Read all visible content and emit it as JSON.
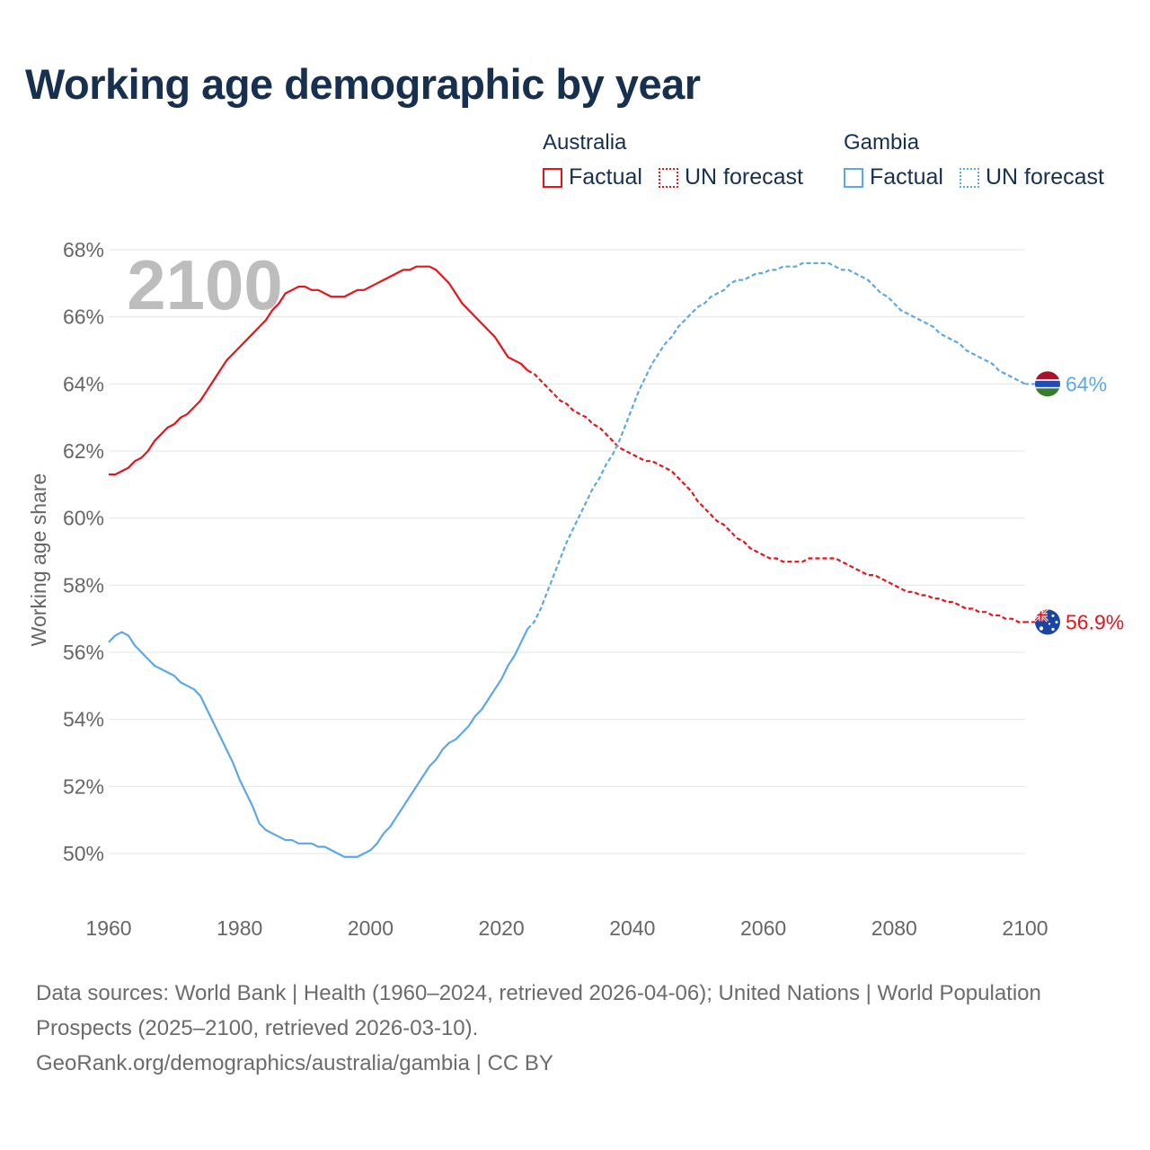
{
  "title": "Working age demographic by year",
  "legend": {
    "australia": {
      "name": "Australia",
      "factual": "Factual",
      "forecast": "UN forecast"
    },
    "gambia": {
      "name": "Gambia",
      "factual": "Factual",
      "forecast": "UN forecast"
    }
  },
  "colors": {
    "australia": "#e8131b",
    "gambia": "#5ca8e6",
    "title": "#18304f",
    "grid": "#e6e6e6",
    "axis_text": "#666666",
    "year_watermark": "#bdbdbd"
  },
  "footer": {
    "sources": "Data sources: World Bank | Health (1960–2024, retrieved 2026-04-06); United Nations | World Population Prospects (2025–2100, retrieved 2026-03-10).",
    "credit": "GeoRank.org/demographics/australia/gambia | CC BY"
  },
  "chart_data": {
    "type": "line",
    "year_label": "2100",
    "ylabel": "Working age share",
    "xlim": [
      1960,
      2100
    ],
    "ylim": [
      49.0,
      68.0
    ],
    "x_ticks": [
      1960,
      1980,
      2000,
      2020,
      2040,
      2060,
      2080,
      2100
    ],
    "y_ticks": [
      50,
      52,
      54,
      56,
      58,
      60,
      62,
      64,
      66,
      68
    ],
    "y_tick_labels": [
      "50%",
      "52%",
      "54%",
      "56%",
      "58%",
      "60%",
      "62%",
      "64%",
      "66%",
      "68%"
    ],
    "factual_range": "1960–2024",
    "forecast_range": "2025–2100",
    "series": [
      {
        "name": "Australia",
        "color": "#e8131b",
        "end_label": "56.9%",
        "flag": "australia-flag",
        "points": [
          [
            1960,
            61.3
          ],
          [
            1961,
            61.3
          ],
          [
            1962,
            61.4
          ],
          [
            1963,
            61.5
          ],
          [
            1964,
            61.7
          ],
          [
            1965,
            61.8
          ],
          [
            1966,
            62.0
          ],
          [
            1967,
            62.3
          ],
          [
            1968,
            62.5
          ],
          [
            1969,
            62.7
          ],
          [
            1970,
            62.8
          ],
          [
            1971,
            63.0
          ],
          [
            1972,
            63.1
          ],
          [
            1973,
            63.3
          ],
          [
            1974,
            63.5
          ],
          [
            1975,
            63.8
          ],
          [
            1976,
            64.1
          ],
          [
            1977,
            64.4
          ],
          [
            1978,
            64.7
          ],
          [
            1979,
            64.9
          ],
          [
            1980,
            65.1
          ],
          [
            1981,
            65.3
          ],
          [
            1982,
            65.5
          ],
          [
            1983,
            65.7
          ],
          [
            1984,
            65.9
          ],
          [
            1985,
            66.2
          ],
          [
            1986,
            66.4
          ],
          [
            1987,
            66.7
          ],
          [
            1988,
            66.8
          ],
          [
            1989,
            66.9
          ],
          [
            1990,
            66.9
          ],
          [
            1991,
            66.8
          ],
          [
            1992,
            66.8
          ],
          [
            1993,
            66.7
          ],
          [
            1994,
            66.6
          ],
          [
            1995,
            66.6
          ],
          [
            1996,
            66.6
          ],
          [
            1997,
            66.7
          ],
          [
            1998,
            66.8
          ],
          [
            1999,
            66.8
          ],
          [
            2000,
            66.9
          ],
          [
            2001,
            67.0
          ],
          [
            2002,
            67.1
          ],
          [
            2003,
            67.2
          ],
          [
            2004,
            67.3
          ],
          [
            2005,
            67.4
          ],
          [
            2006,
            67.4
          ],
          [
            2007,
            67.5
          ],
          [
            2008,
            67.5
          ],
          [
            2009,
            67.5
          ],
          [
            2010,
            67.4
          ],
          [
            2011,
            67.2
          ],
          [
            2012,
            67.0
          ],
          [
            2013,
            66.7
          ],
          [
            2014,
            66.4
          ],
          [
            2015,
            66.2
          ],
          [
            2016,
            66.0
          ],
          [
            2017,
            65.8
          ],
          [
            2018,
            65.6
          ],
          [
            2019,
            65.4
          ],
          [
            2020,
            65.1
          ],
          [
            2021,
            64.8
          ],
          [
            2022,
            64.7
          ],
          [
            2023,
            64.6
          ],
          [
            2024,
            64.4
          ],
          [
            2025,
            64.3
          ],
          [
            2026,
            64.1
          ],
          [
            2027,
            63.9
          ],
          [
            2028,
            63.7
          ],
          [
            2029,
            63.5
          ],
          [
            2030,
            63.4
          ],
          [
            2031,
            63.2
          ],
          [
            2032,
            63.1
          ],
          [
            2033,
            63.0
          ],
          [
            2034,
            62.8
          ],
          [
            2035,
            62.7
          ],
          [
            2036,
            62.5
          ],
          [
            2037,
            62.3
          ],
          [
            2038,
            62.1
          ],
          [
            2039,
            62.0
          ],
          [
            2040,
            61.9
          ],
          [
            2041,
            61.8
          ],
          [
            2042,
            61.7
          ],
          [
            2043,
            61.7
          ],
          [
            2044,
            61.6
          ],
          [
            2045,
            61.5
          ],
          [
            2046,
            61.4
          ],
          [
            2047,
            61.2
          ],
          [
            2048,
            61.0
          ],
          [
            2049,
            60.8
          ],
          [
            2050,
            60.5
          ],
          [
            2051,
            60.3
          ],
          [
            2052,
            60.1
          ],
          [
            2053,
            59.9
          ],
          [
            2054,
            59.8
          ],
          [
            2055,
            59.6
          ],
          [
            2056,
            59.4
          ],
          [
            2057,
            59.3
          ],
          [
            2058,
            59.1
          ],
          [
            2059,
            59.0
          ],
          [
            2060,
            58.9
          ],
          [
            2061,
            58.8
          ],
          [
            2062,
            58.8
          ],
          [
            2063,
            58.7
          ],
          [
            2064,
            58.7
          ],
          [
            2065,
            58.7
          ],
          [
            2066,
            58.7
          ],
          [
            2067,
            58.8
          ],
          [
            2068,
            58.8
          ],
          [
            2069,
            58.8
          ],
          [
            2070,
            58.8
          ],
          [
            2071,
            58.8
          ],
          [
            2072,
            58.7
          ],
          [
            2073,
            58.6
          ],
          [
            2074,
            58.5
          ],
          [
            2075,
            58.4
          ],
          [
            2076,
            58.3
          ],
          [
            2077,
            58.3
          ],
          [
            2078,
            58.2
          ],
          [
            2079,
            58.1
          ],
          [
            2080,
            58.0
          ],
          [
            2081,
            57.9
          ],
          [
            2082,
            57.8
          ],
          [
            2083,
            57.8
          ],
          [
            2084,
            57.7
          ],
          [
            2085,
            57.7
          ],
          [
            2086,
            57.6
          ],
          [
            2087,
            57.6
          ],
          [
            2088,
            57.5
          ],
          [
            2089,
            57.5
          ],
          [
            2090,
            57.4
          ],
          [
            2091,
            57.3
          ],
          [
            2092,
            57.3
          ],
          [
            2093,
            57.2
          ],
          [
            2094,
            57.2
          ],
          [
            2095,
            57.1
          ],
          [
            2096,
            57.1
          ],
          [
            2097,
            57.0
          ],
          [
            2098,
            57.0
          ],
          [
            2099,
            56.9
          ],
          [
            2100,
            56.9
          ]
        ]
      },
      {
        "name": "Gambia",
        "color": "#5ca8e6",
        "end_label": "64%",
        "flag": "gambia-flag",
        "points": [
          [
            1960,
            56.3
          ],
          [
            1961,
            56.5
          ],
          [
            1962,
            56.6
          ],
          [
            1963,
            56.5
          ],
          [
            1964,
            56.2
          ],
          [
            1965,
            56.0
          ],
          [
            1966,
            55.8
          ],
          [
            1967,
            55.6
          ],
          [
            1968,
            55.5
          ],
          [
            1969,
            55.4
          ],
          [
            1970,
            55.3
          ],
          [
            1971,
            55.1
          ],
          [
            1972,
            55.0
          ],
          [
            1973,
            54.9
          ],
          [
            1974,
            54.7
          ],
          [
            1975,
            54.3
          ],
          [
            1976,
            53.9
          ],
          [
            1977,
            53.5
          ],
          [
            1978,
            53.1
          ],
          [
            1979,
            52.7
          ],
          [
            1980,
            52.2
          ],
          [
            1981,
            51.8
          ],
          [
            1982,
            51.4
          ],
          [
            1983,
            50.9
          ],
          [
            1984,
            50.7
          ],
          [
            1985,
            50.6
          ],
          [
            1986,
            50.5
          ],
          [
            1987,
            50.4
          ],
          [
            1988,
            50.4
          ],
          [
            1989,
            50.3
          ],
          [
            1990,
            50.3
          ],
          [
            1991,
            50.3
          ],
          [
            1992,
            50.2
          ],
          [
            1993,
            50.2
          ],
          [
            1994,
            50.1
          ],
          [
            1995,
            50.0
          ],
          [
            1996,
            49.9
          ],
          [
            1997,
            49.9
          ],
          [
            1998,
            49.9
          ],
          [
            1999,
            50.0
          ],
          [
            2000,
            50.1
          ],
          [
            2001,
            50.3
          ],
          [
            2002,
            50.6
          ],
          [
            2003,
            50.8
          ],
          [
            2004,
            51.1
          ],
          [
            2005,
            51.4
          ],
          [
            2006,
            51.7
          ],
          [
            2007,
            52.0
          ],
          [
            2008,
            52.3
          ],
          [
            2009,
            52.6
          ],
          [
            2010,
            52.8
          ],
          [
            2011,
            53.1
          ],
          [
            2012,
            53.3
          ],
          [
            2013,
            53.4
          ],
          [
            2014,
            53.6
          ],
          [
            2015,
            53.8
          ],
          [
            2016,
            54.1
          ],
          [
            2017,
            54.3
          ],
          [
            2018,
            54.6
          ],
          [
            2019,
            54.9
          ],
          [
            2020,
            55.2
          ],
          [
            2021,
            55.6
          ],
          [
            2022,
            55.9
          ],
          [
            2023,
            56.3
          ],
          [
            2024,
            56.7
          ],
          [
            2025,
            56.9
          ],
          [
            2026,
            57.3
          ],
          [
            2027,
            57.8
          ],
          [
            2028,
            58.3
          ],
          [
            2029,
            58.8
          ],
          [
            2030,
            59.3
          ],
          [
            2031,
            59.7
          ],
          [
            2032,
            60.1
          ],
          [
            2033,
            60.5
          ],
          [
            2034,
            60.9
          ],
          [
            2035,
            61.2
          ],
          [
            2036,
            61.6
          ],
          [
            2037,
            61.9
          ],
          [
            2038,
            62.3
          ],
          [
            2039,
            62.8
          ],
          [
            2040,
            63.3
          ],
          [
            2041,
            63.8
          ],
          [
            2042,
            64.2
          ],
          [
            2043,
            64.6
          ],
          [
            2044,
            64.9
          ],
          [
            2045,
            65.2
          ],
          [
            2046,
            65.4
          ],
          [
            2047,
            65.7
          ],
          [
            2048,
            65.9
          ],
          [
            2049,
            66.1
          ],
          [
            2050,
            66.3
          ],
          [
            2051,
            66.4
          ],
          [
            2052,
            66.6
          ],
          [
            2053,
            66.7
          ],
          [
            2054,
            66.8
          ],
          [
            2055,
            67.0
          ],
          [
            2056,
            67.1
          ],
          [
            2057,
            67.1
          ],
          [
            2058,
            67.2
          ],
          [
            2059,
            67.3
          ],
          [
            2060,
            67.3
          ],
          [
            2061,
            67.4
          ],
          [
            2062,
            67.4
          ],
          [
            2063,
            67.5
          ],
          [
            2064,
            67.5
          ],
          [
            2065,
            67.5
          ],
          [
            2066,
            67.6
          ],
          [
            2067,
            67.6
          ],
          [
            2068,
            67.6
          ],
          [
            2069,
            67.6
          ],
          [
            2070,
            67.6
          ],
          [
            2071,
            67.5
          ],
          [
            2072,
            67.4
          ],
          [
            2073,
            67.4
          ],
          [
            2074,
            67.3
          ],
          [
            2075,
            67.2
          ],
          [
            2076,
            67.1
          ],
          [
            2077,
            66.9
          ],
          [
            2078,
            66.7
          ],
          [
            2079,
            66.6
          ],
          [
            2080,
            66.4
          ],
          [
            2081,
            66.2
          ],
          [
            2082,
            66.1
          ],
          [
            2083,
            66.0
          ],
          [
            2084,
            65.9
          ],
          [
            2085,
            65.8
          ],
          [
            2086,
            65.7
          ],
          [
            2087,
            65.5
          ],
          [
            2088,
            65.4
          ],
          [
            2089,
            65.3
          ],
          [
            2090,
            65.2
          ],
          [
            2091,
            65.0
          ],
          [
            2092,
            64.9
          ],
          [
            2093,
            64.8
          ],
          [
            2094,
            64.7
          ],
          [
            2095,
            64.6
          ],
          [
            2096,
            64.4
          ],
          [
            2097,
            64.3
          ],
          [
            2098,
            64.2
          ],
          [
            2099,
            64.1
          ],
          [
            2100,
            64.0
          ]
        ]
      }
    ]
  }
}
